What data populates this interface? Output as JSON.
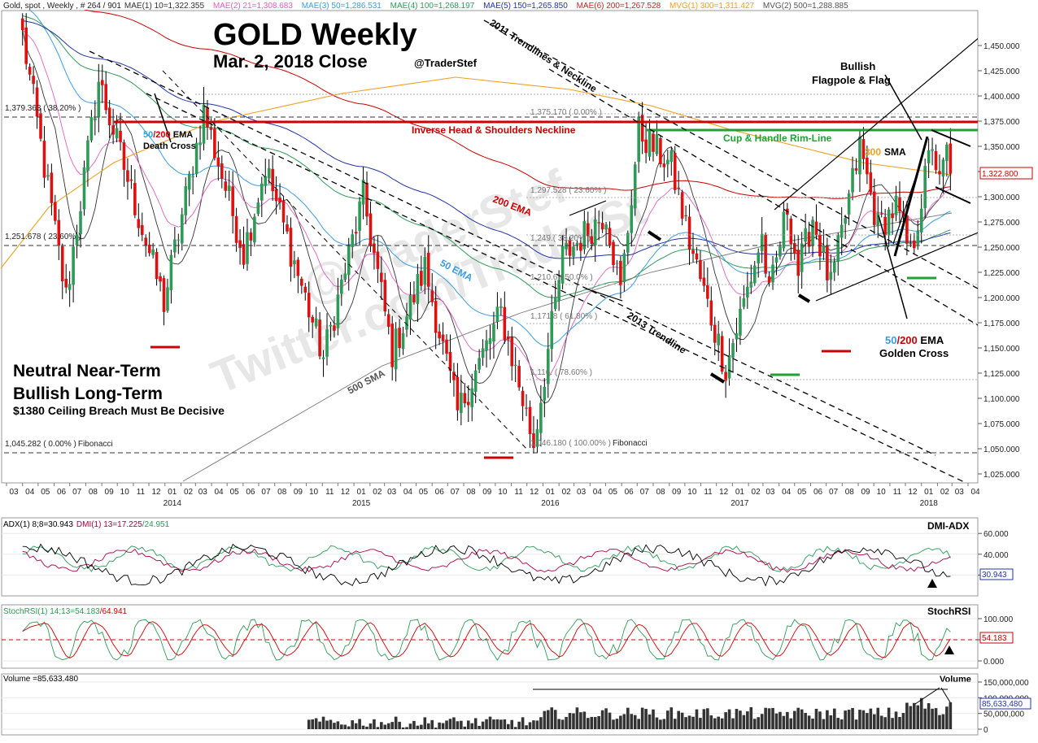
{
  "colors": {
    "up": "#2e9a57",
    "down": "#dd1111",
    "neckline": "#cc0000",
    "rim": "#22a034",
    "sma300": "#f0a020",
    "ema50": "#3a9de0",
    "ema200": "#cc0000",
    "dmi_plus": "#2e9a57",
    "dmi_minus": "#aa0044",
    "stoch": "#2e9a57",
    "stoch_sig": "#cc0000",
    "volume": "#333333"
  },
  "header": {
    "line1": "Gold, spot , Weekly , # 264 / 901",
    "ind": [
      {
        "text": "MAE(1) 10=1,322.355",
        "color": "#333333"
      },
      {
        "text": "MAE(2) 21=1,308.683",
        "color": "#e060c0"
      },
      {
        "text": "MAE(3) 50=1,286.531",
        "color": "#3a9de0"
      },
      {
        "text": "MAE(4) 100=1,268.197",
        "color": "#2e9a57"
      },
      {
        "text": "MAE(5) 150=1,265.850",
        "color": "#2233aa"
      },
      {
        "text": "MAE(6) 200=1,267.528",
        "color": "#cc2222"
      },
      {
        "text": "MVG(1) 300=1,311.427",
        "color": "#f0a020"
      },
      {
        "text": "MVG(2) 500=1,288.885",
        "color": "#555555"
      }
    ]
  },
  "titles": {
    "title": "GOLD Weekly",
    "subtitle": "Mar. 2, 2018 Close",
    "handle": "@TraderStef",
    "watermark1": "@TraderStef",
    "watermark2": "Twitter.com/TraderSt"
  },
  "notes": {
    "neutral": "Neutral Near-Term",
    "bullish": "Bullish Long-Term",
    "ceiling": "$1380 Ceiling Breach Must Be Decisive"
  },
  "annotations": {
    "neckline": "Inverse Head & Shoulders Neckline",
    "rim": "Cup & Handle Rim-Line",
    "trend2011": "2011 Trendlines & Neckline",
    "trend2013": "2013 Trendline",
    "ema200": "200 EMA",
    "ema50": "50 EMA",
    "sma500": "500 SMA",
    "sma300_num": "300",
    "sma300_txt": "SMA",
    "flag1": "Bullish",
    "flag2": "Flagpole & Flag",
    "death_50": "50",
    "death_200": "/200",
    "death_ema": " EMA",
    "death_cross": "Death Cross",
    "golden_50": "50",
    "golden_200": "/200",
    "golden_ema": " EMA",
    "golden_cross": "Golden Cross",
    "fib_top": "1,379.363 ( 38.20% )",
    "fib_mid": "1,251.678 ( 23.60% )",
    "fib_low": "1,045.282 ( 0.00% )",
    "fib_low_tag": "Fibonacci",
    "fib_r0": "1,375.170 ( 0.00% )",
    "fib_r236": "1,297.528 ( 23.60% )",
    "fib_r382": "1,249.( 38.20% )",
    "fib_r500": "1,210.6 ( 50.0% )",
    "fib_r618": "1,171.8 ( 61.80% )",
    "fib_r786": "1,116.  ( 78.60% )",
    "fib_r100": "1,046.180 ( 100.00% )",
    "fib_r100_tag": "Fibonacci"
  },
  "price_axis": {
    "ticks": [
      "1,450.000",
      "1,425.000",
      "1,400.000",
      "1,375.000",
      "1,350.000",
      "1,325.000",
      "1,300.000",
      "1,275.000",
      "1,250.000",
      "1,225.000",
      "1,200.000",
      "1,175.000",
      "1,150.000",
      "1,125.000",
      "1,100.000",
      "1,075.000",
      "1,050.000",
      "1,025.000"
    ],
    "last": "1,322.800"
  },
  "time_axis": {
    "months": [
      "03",
      "04",
      "05",
      "06",
      "07",
      "08",
      "09",
      "10",
      "11",
      "12",
      "01",
      "02",
      "03",
      "04",
      "05",
      "06",
      "07",
      "08",
      "09",
      "10",
      "11",
      "12",
      "01",
      "02",
      "03",
      "04",
      "05",
      "06",
      "07",
      "08",
      "09",
      "10",
      "11",
      "12",
      "01",
      "02",
      "03",
      "04",
      "05",
      "06",
      "07",
      "08",
      "09",
      "10",
      "11",
      "12",
      "01",
      "02",
      "03",
      "04",
      "05",
      "06",
      "07",
      "08",
      "09",
      "10",
      "11",
      "12",
      "01",
      "02",
      "03",
      "04"
    ],
    "years": [
      "2014",
      "2015",
      "2016",
      "2017",
      "2018"
    ]
  },
  "panels": {
    "dmi": {
      "header_black": "ADX(1) 8;8=30.943",
      "header_red": "DMI(1) 13=17.225",
      "header_green": "/24.951",
      "name": "DMI-ADX",
      "ticks": [
        "60.000",
        "40.000",
        "20.000"
      ],
      "last": "30.943"
    },
    "stoch": {
      "header_green": "StochRSI(1) 14;13=54.183",
      "header_red": "/64.941",
      "name": "StochRSI",
      "ticks": [
        "100.000",
        "50.000",
        "0.000"
      ],
      "last": "54.183"
    },
    "volume": {
      "header": "Volume =85,633,480",
      "name": "Volume",
      "ticks": [
        "150,000,000",
        "100,000,000",
        "50,000,000",
        "0"
      ],
      "last": "85,633,480"
    }
  },
  "chart_data": {
    "type": "candlestick",
    "title": "GOLD Weekly",
    "subtitle": "Mar. 2, 2018 Close",
    "instrument": "Gold, spot, Weekly",
    "ylim": [
      1015,
      1462
    ],
    "last_close": 1322.8,
    "key_levels": [
      {
        "name": "Inverse Head & Shoulders Neckline",
        "value": 1373
      },
      {
        "name": "Cup & Handle Rim-Line",
        "value": 1366
      },
      {
        "name": "Fibonacci 38.20%",
        "value": 1379.363
      },
      {
        "name": "Fibonacci 23.60%",
        "value": 1251.678
      },
      {
        "name": "Fibonacci 0.00%",
        "value": 1045.282
      }
    ],
    "anchors": [
      {
        "date": "2013-04-01",
        "value": 1460
      },
      {
        "date": "2013-06-24",
        "value": 1200
      },
      {
        "date": "2013-08-26",
        "value": 1415
      },
      {
        "date": "2013-12-30",
        "value": 1195
      },
      {
        "date": "2014-03-17",
        "value": 1385
      },
      {
        "date": "2014-06-02",
        "value": 1245
      },
      {
        "date": "2014-07-14",
        "value": 1330
      },
      {
        "date": "2014-11-03",
        "value": 1140
      },
      {
        "date": "2015-01-19",
        "value": 1300
      },
      {
        "date": "2015-03-16",
        "value": 1145
      },
      {
        "date": "2015-05-18",
        "value": 1230
      },
      {
        "date": "2015-07-20",
        "value": 1085
      },
      {
        "date": "2015-10-12",
        "value": 1185
      },
      {
        "date": "2015-12-14",
        "value": 1055
      },
      {
        "date": "2016-02-08",
        "value": 1240
      },
      {
        "date": "2016-05-02",
        "value": 1285
      },
      {
        "date": "2016-05-30",
        "value": 1205
      },
      {
        "date": "2016-07-04",
        "value": 1365
      },
      {
        "date": "2016-09-05",
        "value": 1330
      },
      {
        "date": "2016-10-10",
        "value": 1255
      },
      {
        "date": "2016-12-19",
        "value": 1130
      },
      {
        "date": "2017-02-27",
        "value": 1260
      },
      {
        "date": "2017-03-13",
        "value": 1200
      },
      {
        "date": "2017-04-17",
        "value": 1290
      },
      {
        "date": "2017-05-08",
        "value": 1225
      },
      {
        "date": "2017-06-05",
        "value": 1280
      },
      {
        "date": "2017-07-10",
        "value": 1210
      },
      {
        "date": "2017-09-04",
        "value": 1350
      },
      {
        "date": "2017-10-09",
        "value": 1270
      },
      {
        "date": "2017-11-13",
        "value": 1290
      },
      {
        "date": "2017-12-11",
        "value": 1240
      },
      {
        "date": "2018-01-22",
        "value": 1355
      },
      {
        "date": "2018-02-05",
        "value": 1310
      },
      {
        "date": "2018-02-19",
        "value": 1345
      },
      {
        "date": "2018-03-02",
        "value": 1322.8
      }
    ]
  }
}
